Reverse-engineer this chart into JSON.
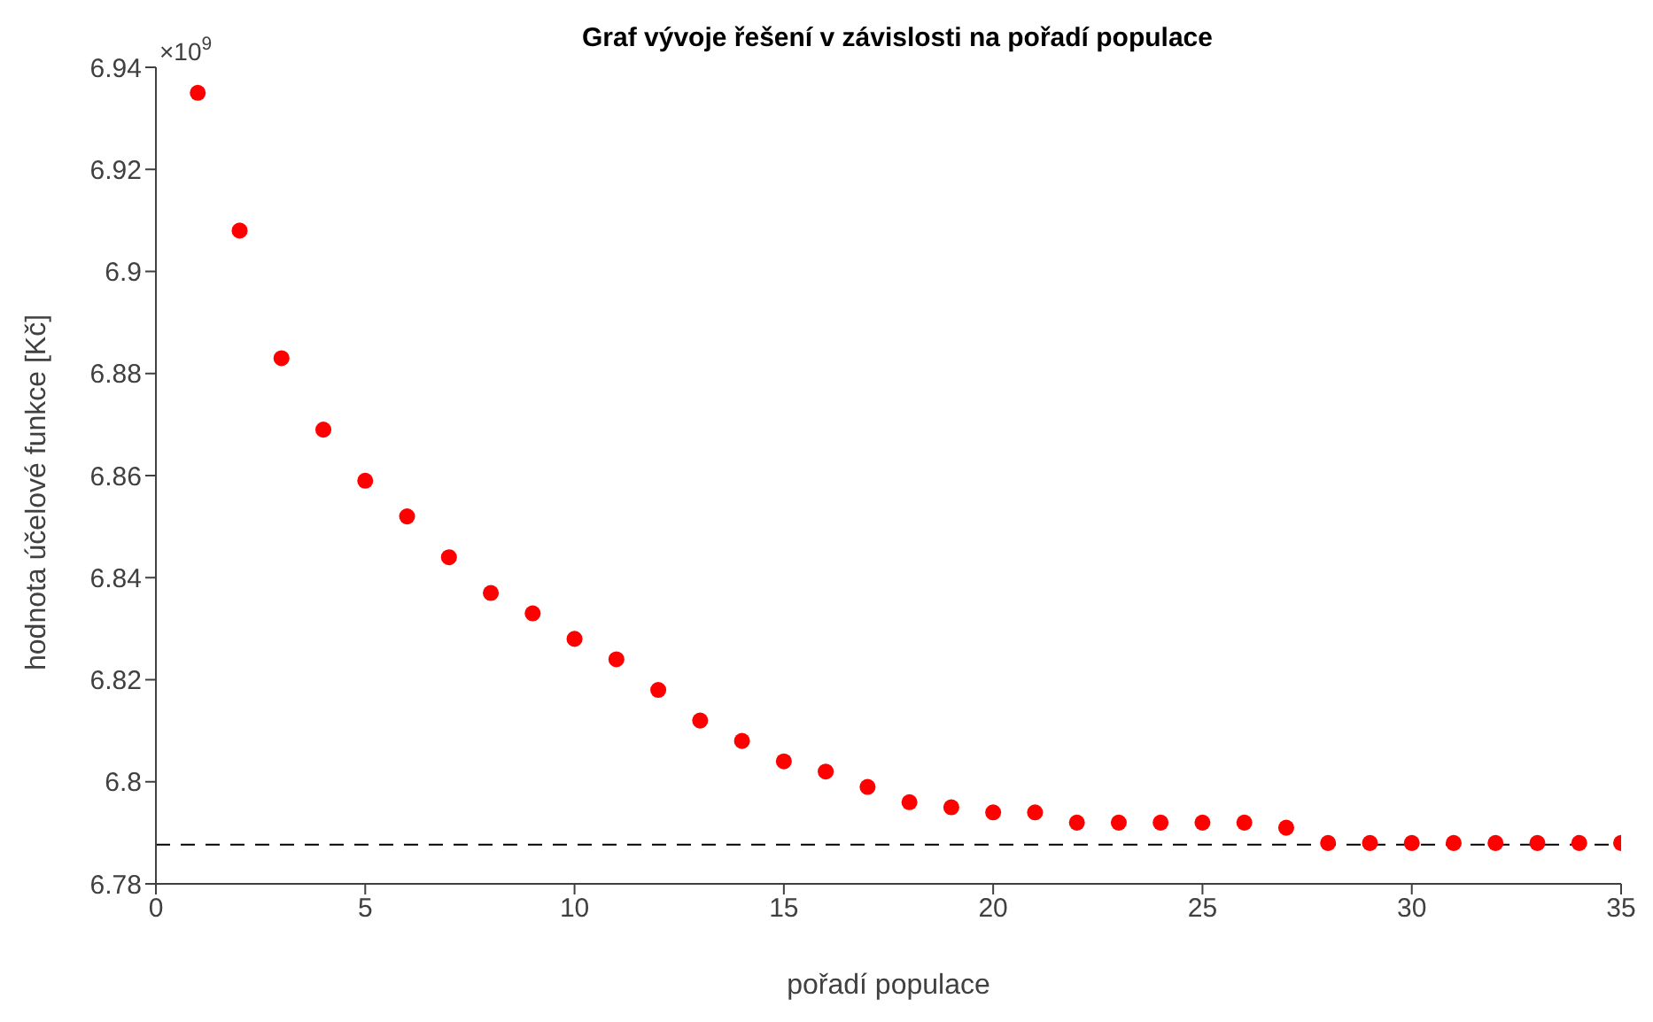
{
  "chart_data": {
    "type": "scatter",
    "title": "Graf vývoje řešení v závislosti na pořadí populace",
    "xlabel": "pořadí populace",
    "ylabel": "hodnota účelové funkce [Kč]",
    "annotations": [
      "×10$^{9}$"
    ],
    "x": [
      1,
      2,
      3,
      4,
      5,
      6,
      7,
      8,
      9,
      10,
      11,
      12,
      13,
      14,
      15,
      16,
      17,
      18,
      19,
      20,
      21,
      22,
      23,
      24,
      25,
      26,
      27,
      28,
      29,
      30,
      31,
      32,
      33,
      34,
      35
    ],
    "series": [
      {
        "color": "#ff0000",
        "values": [
          6.935,
          6.908,
          6.883,
          6.869,
          6.859,
          6.852,
          6.844,
          6.837,
          6.833,
          6.828,
          6.824,
          6.818,
          6.812,
          6.808,
          6.804,
          6.802,
          6.799,
          6.796,
          6.795,
          6.794,
          6.794,
          6.792,
          6.792,
          6.792,
          6.792,
          6.792,
          6.791,
          6.788,
          6.788,
          6.788,
          6.788,
          6.788,
          6.788,
          6.788,
          6.788
        ]
      }
    ],
    "xlim": [
      0,
      35
    ],
    "xticks": [
      0,
      5,
      10,
      15,
      20,
      25,
      30,
      35
    ],
    "ylim": [
      6.78,
      6.94
    ],
    "yticks": [
      6.78,
      {
        "value": 6.8,
        "label": "6.8"
      },
      6.82,
      6.84,
      6.86,
      6.88,
      {
        "value": 6.9,
        "label": "6.9"
      },
      6.92,
      6.94
    ],
    "ref_lines": [
      {
        "axis": "y",
        "value": 6.7877,
        "color": "#000000",
        "line_style": "dashed"
      }
    ],
    "marker": "circle",
    "grid": false,
    "legend": false
  }
}
